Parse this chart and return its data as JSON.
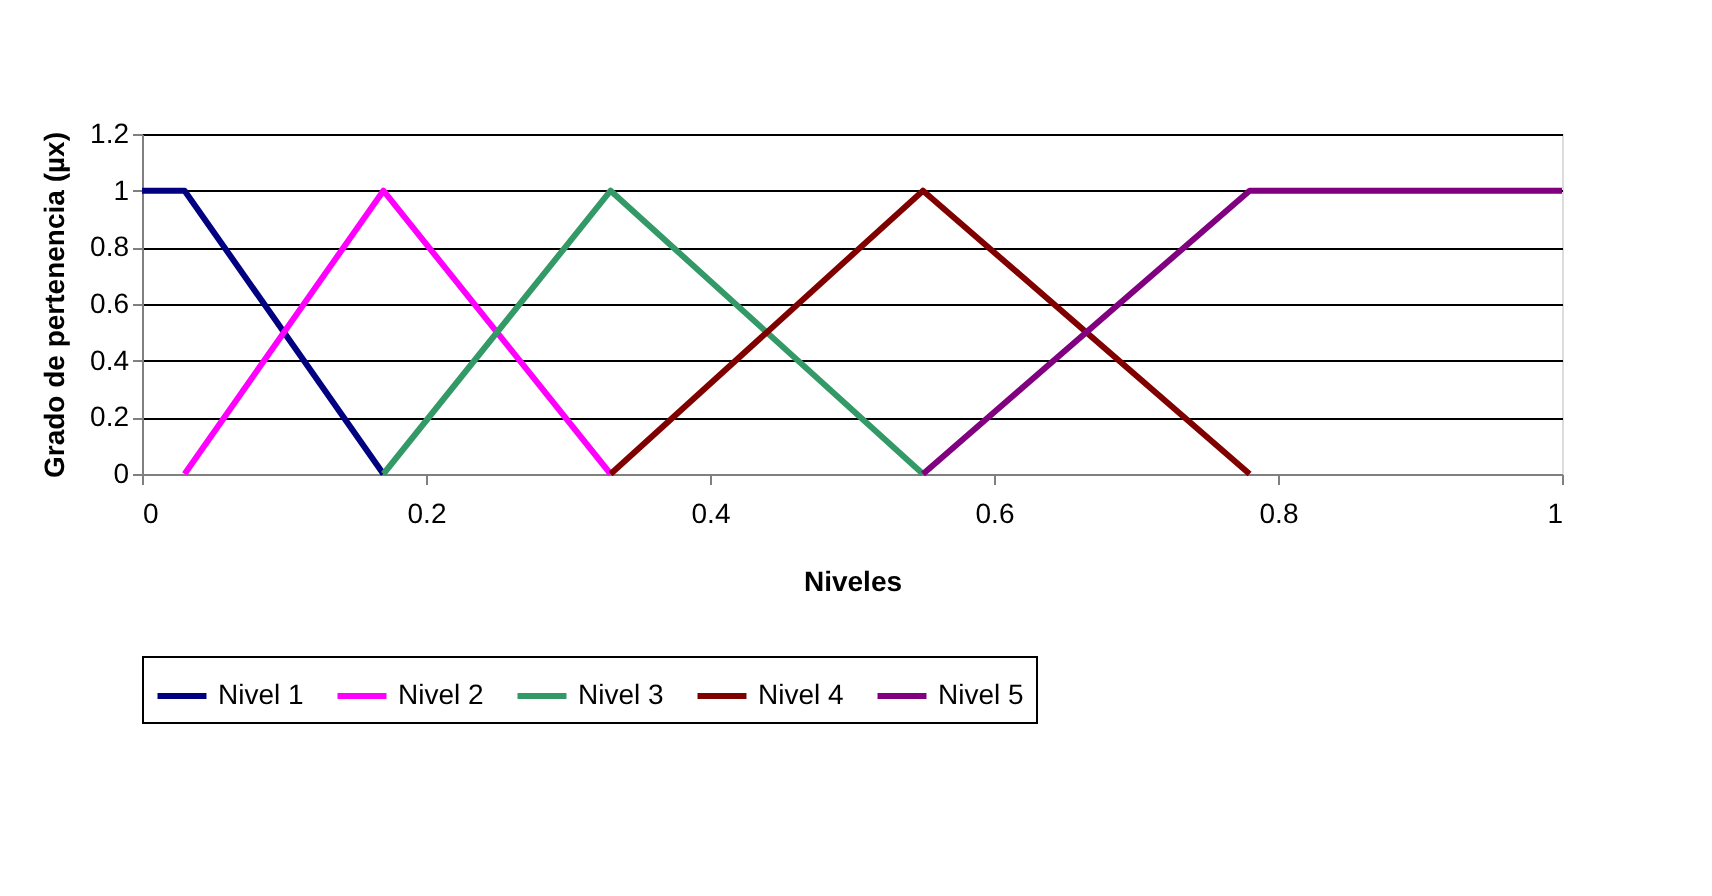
{
  "chart_data": {
    "type": "line",
    "xlabel": "Niveles",
    "ylabel": "Grado de pertenencia (µx)",
    "xlim": [
      0,
      1
    ],
    "xticks": [
      0,
      0.2,
      0.4,
      0.6,
      0.8,
      1
    ],
    "ylim": [
      0,
      1.2
    ],
    "yticks": [
      0,
      0.2,
      0.4,
      0.6,
      0.8,
      1,
      1.2
    ],
    "grid": "y",
    "legend": "bottom",
    "marker": "none",
    "line_style": "solid",
    "series": [
      {
        "name": "Nivel 1",
        "color": "#000080",
        "x": [
          0,
          0.03,
          0.17
        ],
        "values": [
          1,
          1,
          0
        ]
      },
      {
        "name": "Nivel 2",
        "color": "#ff00ff",
        "x": [
          0.03,
          0.17,
          0.33
        ],
        "values": [
          0,
          1,
          0
        ]
      },
      {
        "name": "Nivel 3",
        "color": "#339966",
        "x": [
          0.17,
          0.33,
          0.55
        ],
        "values": [
          0,
          1,
          0
        ]
      },
      {
        "name": "Nivel 4",
        "color": "#800000",
        "x": [
          0.33,
          0.55,
          0.78
        ],
        "values": [
          0,
          1,
          0
        ]
      },
      {
        "name": "Nivel 5",
        "color": "#800080",
        "x": [
          0.55,
          0.78,
          1
        ],
        "values": [
          0,
          1,
          1
        ]
      }
    ]
  }
}
